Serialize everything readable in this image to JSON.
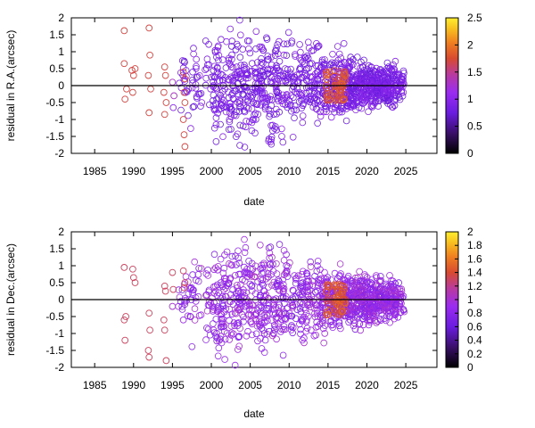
{
  "chart_data": [
    {
      "type": "scatter",
      "xlabel": "date",
      "ylabel": "residual in R.A.(arcsec)",
      "xlim": [
        1982,
        2029
      ],
      "ylim": [
        -2,
        2
      ],
      "xticks": [
        "1985",
        "1990",
        "1995",
        "2000",
        "2005",
        "2010",
        "2015",
        "2020",
        "2025"
      ],
      "yticks": [
        "-2",
        "-1.5",
        "-1",
        "-0.5",
        "0",
        "0.5",
        "1",
        "1.5",
        "2"
      ],
      "colorbar": {
        "min": 0,
        "max": 2.5,
        "ticks": [
          "0",
          "0.5",
          "1",
          "1.5",
          "2",
          "2.5"
        ]
      },
      "zero_line": true,
      "points": [
        {
          "x": 1988.8,
          "y": 1.62,
          "c": 1.7
        },
        {
          "x": 1988.8,
          "y": 0.65,
          "c": 1.7
        },
        {
          "x": 1989.1,
          "y": -0.1,
          "c": 1.7
        },
        {
          "x": 1988.9,
          "y": -0.4,
          "c": 1.7
        },
        {
          "x": 1989.8,
          "y": 0.45,
          "c": 1.7
        },
        {
          "x": 1990.0,
          "y": 0.3,
          "c": 1.7
        },
        {
          "x": 1990.2,
          "y": 0.5,
          "c": 1.7
        },
        {
          "x": 1989.9,
          "y": -0.2,
          "c": 1.7
        },
        {
          "x": 1992.0,
          "y": 1.7,
          "c": 1.7
        },
        {
          "x": 1992.1,
          "y": 0.9,
          "c": 1.7
        },
        {
          "x": 1991.9,
          "y": 0.3,
          "c": 1.7
        },
        {
          "x": 1992.2,
          "y": -0.1,
          "c": 1.7
        },
        {
          "x": 1992.0,
          "y": -0.8,
          "c": 1.7
        },
        {
          "x": 1994.0,
          "y": 0.55,
          "c": 1.7
        },
        {
          "x": 1994.1,
          "y": 0.3,
          "c": 1.7
        },
        {
          "x": 1993.9,
          "y": -0.2,
          "c": 1.7
        },
        {
          "x": 1994.2,
          "y": -0.5,
          "c": 1.7
        },
        {
          "x": 1994.0,
          "y": -0.85,
          "c": 1.7
        },
        {
          "x": 1995.0,
          "y": 0.1,
          "c": 1.3
        },
        {
          "x": 1995.2,
          "y": -0.3,
          "c": 1.3
        },
        {
          "x": 1995.1,
          "y": -0.65,
          "c": 1.0
        },
        {
          "x": 1996.4,
          "y": 0.4,
          "c": 1.7
        },
        {
          "x": 1996.6,
          "y": 0.2,
          "c": 1.7
        },
        {
          "x": 1996.5,
          "y": -0.2,
          "c": 1.7
        },
        {
          "x": 1996.6,
          "y": -0.5,
          "c": 1.7
        },
        {
          "x": 1996.4,
          "y": -1.0,
          "c": 1.7
        },
        {
          "x": 1996.5,
          "y": -1.45,
          "c": 1.7
        },
        {
          "x": 1996.6,
          "y": -1.8,
          "c": 1.7
        }
      ],
      "cloud": {
        "years": [
          1996.5,
          1998,
          2000,
          2001,
          2002,
          2003,
          2004,
          2005,
          2006,
          2007,
          2008,
          2009,
          2010,
          2011,
          2012,
          2013,
          2014,
          2015,
          2016,
          2017,
          2018,
          2019,
          2020,
          2021,
          2022,
          2023,
          2024
        ],
        "spreads": [
          1.2,
          1.3,
          1.4,
          1.7,
          1.6,
          1.8,
          1.7,
          1.7,
          1.5,
          1.8,
          1.9,
          1.6,
          1.4,
          1.4,
          1.3,
          1.2,
          1.3,
          1.0,
          1.0,
          1.1,
          0.8,
          0.7,
          0.7,
          0.75,
          0.7,
          0.7,
          0.6
        ],
        "counts": [
          6,
          8,
          10,
          12,
          12,
          14,
          12,
          14,
          12,
          14,
          14,
          12,
          10,
          10,
          10,
          12,
          14,
          14,
          16,
          16,
          22,
          24,
          24,
          24,
          22,
          22,
          18
        ],
        "high_color_years": [
          2015,
          2016,
          2016.5,
          2017
        ]
      }
    },
    {
      "type": "scatter",
      "xlabel": "date",
      "ylabel": "residual in Dec.(arcsec)",
      "xlim": [
        1982,
        2029
      ],
      "ylim": [
        -2,
        2
      ],
      "xticks": [
        "1985",
        "1990",
        "1995",
        "2000",
        "2005",
        "2010",
        "2015",
        "2020",
        "2025"
      ],
      "yticks": [
        "-2",
        "-1.5",
        "-1",
        "-0.5",
        "0",
        "0.5",
        "1",
        "1.5",
        "2"
      ],
      "colorbar": {
        "min": 0,
        "max": 2,
        "ticks": [
          "0",
          "0.2",
          "0.4",
          "0.6",
          "0.8",
          "1",
          "1.2",
          "1.4",
          "1.6",
          "1.8",
          "2"
        ]
      },
      "zero_line": true,
      "points": [
        {
          "x": 1988.8,
          "y": 0.95,
          "c": 1.3
        },
        {
          "x": 1989.0,
          "y": -0.5,
          "c": 1.3
        },
        {
          "x": 1988.8,
          "y": -0.6,
          "c": 1.3
        },
        {
          "x": 1988.9,
          "y": -1.2,
          "c": 1.3
        },
        {
          "x": 1989.9,
          "y": 0.9,
          "c": 1.3
        },
        {
          "x": 1990.0,
          "y": 0.65,
          "c": 1.3
        },
        {
          "x": 1990.2,
          "y": 0.5,
          "c": 1.3
        },
        {
          "x": 1992.0,
          "y": -0.4,
          "c": 1.3
        },
        {
          "x": 1992.1,
          "y": -0.9,
          "c": 1.3
        },
        {
          "x": 1991.9,
          "y": -1.5,
          "c": 1.3
        },
        {
          "x": 1992.0,
          "y": -1.7,
          "c": 1.3
        },
        {
          "x": 1994.0,
          "y": 0.4,
          "c": 1.3
        },
        {
          "x": 1994.1,
          "y": 0.25,
          "c": 1.3
        },
        {
          "x": 1993.9,
          "y": -0.6,
          "c": 1.3
        },
        {
          "x": 1994.0,
          "y": -0.9,
          "c": 1.3
        },
        {
          "x": 1994.2,
          "y": -1.8,
          "c": 1.3
        },
        {
          "x": 1995.0,
          "y": 0.8,
          "c": 1.3
        },
        {
          "x": 1995.1,
          "y": 0.3,
          "c": 1.3
        },
        {
          "x": 1995.0,
          "y": -0.2,
          "c": 1.0
        },
        {
          "x": 1996.4,
          "y": 0.85,
          "c": 1.3
        },
        {
          "x": 1996.6,
          "y": 0.5,
          "c": 1.3
        },
        {
          "x": 1996.5,
          "y": 0.35,
          "c": 1.3
        },
        {
          "x": 1996.4,
          "y": -0.6,
          "c": 0.9
        }
      ],
      "cloud": {
        "years": [
          1996.5,
          1998,
          2000,
          2001,
          2002,
          2003,
          2004,
          2005,
          2006,
          2007,
          2008,
          2009,
          2010,
          2011,
          2012,
          2013,
          2014,
          2015,
          2016,
          2017,
          2018,
          2019,
          2020,
          2021,
          2022,
          2023,
          2024
        ],
        "spreads": [
          1.2,
          1.4,
          1.4,
          1.6,
          1.7,
          1.9,
          1.6,
          1.7,
          1.8,
          1.9,
          1.9,
          1.6,
          1.4,
          1.3,
          1.3,
          1.1,
          1.2,
          0.9,
          1.0,
          1.0,
          0.8,
          0.9,
          0.8,
          0.8,
          0.7,
          0.7,
          0.6
        ],
        "counts": [
          6,
          8,
          10,
          12,
          12,
          14,
          12,
          14,
          12,
          14,
          14,
          12,
          10,
          10,
          10,
          12,
          14,
          14,
          16,
          16,
          22,
          24,
          24,
          24,
          22,
          22,
          18
        ],
        "high_color_years": [
          2015,
          2016,
          2016.5,
          2017
        ]
      }
    }
  ]
}
